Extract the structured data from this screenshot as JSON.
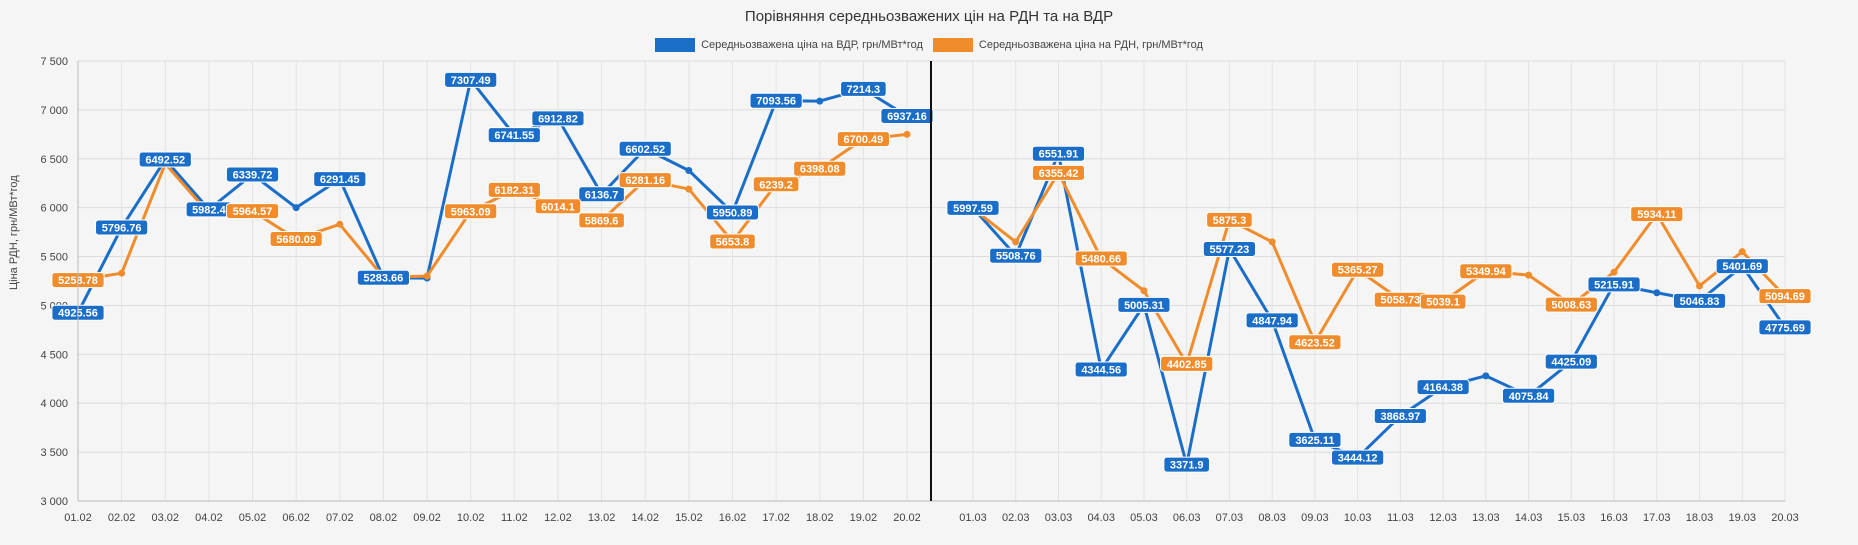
{
  "chart_data": {
    "type": "line",
    "title": "Порівняння середньозважених цін на РДН та на ВДР",
    "xlabel": "",
    "ylabel": "Ціна РДН, грн/МВт*год",
    "ylim": [
      3000,
      7500
    ],
    "yticks": [
      "3 000",
      "3 500",
      "4 000",
      "4 500",
      "5 000",
      "5 500",
      "6 000",
      "6 500",
      "7 000",
      "7 500"
    ],
    "ytick_values": [
      3000,
      3500,
      4000,
      4500,
      5000,
      5500,
      6000,
      6500,
      7000,
      7500
    ],
    "grid": true,
    "legend_position": "top",
    "panels": [
      {
        "categories": [
          "01.02",
          "02.02",
          "03.02",
          "04.02",
          "05.02",
          "06.02",
          "07.02",
          "08.02",
          "09.02",
          "10.02",
          "11.02",
          "12.02",
          "13.02",
          "14.02",
          "15.02",
          "16.02",
          "17.02",
          "18.02",
          "19.02",
          "20.02"
        ],
        "series": [
          {
            "name": "Середньозважена ціна на ВДР, грн/МВт*год",
            "color": "#1a6ec8",
            "values": [
              4925.56,
              5796.76,
              6492.52,
              5982.4,
              6339.72,
              6000,
              6291.45,
              5283.66,
              5280,
              7307.49,
              6741.55,
              6912.82,
              6136.7,
              6602.52,
              6380,
              5950.89,
              7093.56,
              7090,
              7214.3,
              6937.16
            ],
            "labels": [
              "4925.56",
              "5796.76",
              "6492.52",
              "5982.4",
              "6339.72",
              "",
              "6291.45",
              "5283.66",
              "",
              "7307.49",
              "6741.55",
              "6912.82",
              "6136.7",
              "6602.52",
              "",
              "5950.89",
              "7093.56",
              "",
              "7214.3",
              "6937.16"
            ]
          },
          {
            "name": "Середньозважена ціна на РДН, грн/МВт*год",
            "color": "#f08c2c",
            "values": [
              5258.78,
              5330,
              6450,
              5940,
              5964.57,
              5680.09,
              5830,
              5290,
              5300,
              5963.09,
              6182.31,
              6014.1,
              5869.6,
              6281.16,
              6190,
              5653.8,
              6239.2,
              6398.08,
              6700.49,
              6750
            ],
            "labels": [
              "5258.78",
              "",
              "",
              "",
              "5964.57",
              "5680.09",
              "",
              "",
              "",
              "5963.09",
              "6182.31",
              "6014.1",
              "5869.6",
              "6281.16",
              "",
              "5653.8",
              "6239.2",
              "6398.08",
              "6700.49",
              ""
            ]
          }
        ]
      },
      {
        "categories": [
          "01.03",
          "02.03",
          "03.03",
          "04.03",
          "05.03",
          "06.03",
          "07.03",
          "08.03",
          "09.03",
          "10.03",
          "11.03",
          "12.03",
          "13.03",
          "14.03",
          "15.03",
          "16.03",
          "17.03",
          "18.03",
          "19.03",
          "20.03"
        ],
        "series": [
          {
            "name": "Середньозважена ціна на ВДР, грн/МВт*год",
            "color": "#1a6ec8",
            "values": [
              5997.59,
              5508.76,
              6551.91,
              4344.56,
              5005.31,
              3371.9,
              5577.23,
              4847.94,
              3625.11,
              3444.12,
              3868.97,
              4164.38,
              4280,
              4075.84,
              4425.09,
              5215.91,
              5130,
              5046.83,
              5401.69,
              4775.69
            ],
            "labels": [
              "5997.59",
              "5508.76",
              "6551.91",
              "4344.56",
              "5005.31",
              "3371.9",
              "5577.23",
              "4847.94",
              "3625.11",
              "3444.12",
              "3868.97",
              "4164.38",
              "",
              "4075.84",
              "4425.09",
              "5215.91",
              "",
              "5046.83",
              "5401.69",
              "4775.69"
            ]
          },
          {
            "name": "Середньозважена ціна на РДН, грн/МВт*год",
            "color": "#f08c2c",
            "values": [
              5990,
              5650,
              6355.42,
              5480.66,
              5150,
              4402.85,
              5875.3,
              5650,
              4623.52,
              5365.27,
              5058.73,
              5039.1,
              5349.94,
              5310,
              5008.63,
              5340,
              5934.11,
              5200,
              5550,
              5094.69
            ],
            "labels": [
              "",
              "",
              "6355.42",
              "5480.66",
              "",
              "4402.85",
              "5875.3",
              "",
              "4623.52",
              "5365.27",
              "5058.73",
              "5039.1",
              "5349.94",
              "",
              "5008.63",
              "",
              "5934.11",
              "",
              "",
              "5094.69"
            ]
          }
        ]
      }
    ]
  }
}
